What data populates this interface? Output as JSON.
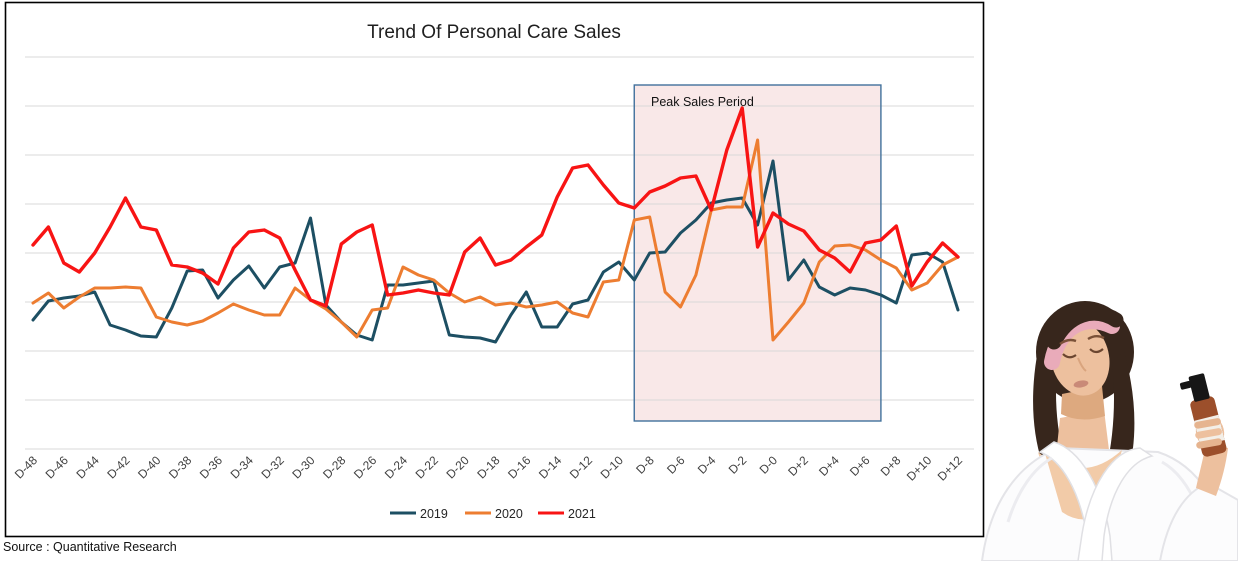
{
  "source_note": "Source : Quantitative Research",
  "photo_description": "Woman wearing a pink headband and white bathrobe, eyes closed, head tilted back, spraying an amber facial mist bottle held in her raised hand",
  "colors": {
    "series_2019": "#1d4f63",
    "series_2020": "#ed7d31",
    "series_2021": "#f81414",
    "gridline": "#d9d9d9",
    "chart_border": "#000000",
    "peak_region_fill": "#f9e8e8",
    "peak_region_border": "#41719c",
    "photo": {
      "skin": "#edc09e",
      "skin_shadow": "#dda97f",
      "hair": "#37261c",
      "headband": "#e9abba",
      "robe": "#fcfcfd",
      "robe_edge": "#e4e4e8",
      "bottle": "#9c4f2b",
      "bottle_label": "#f3efe8",
      "bottle_cap": "#161616"
    }
  },
  "chart_data": {
    "type": "line",
    "title": "Trend Of Personal Care Sales",
    "x_tick_labels": [
      "D-48",
      "D-46",
      "D-44",
      "D-42",
      "D-40",
      "D-38",
      "D-36",
      "D-34",
      "D-32",
      "D-30",
      "D-28",
      "D-26",
      "D-24",
      "D-22",
      "D-20",
      "D-18",
      "D-16",
      "D-14",
      "D-12",
      "D-10",
      "D-8",
      "D-6",
      "D-4",
      "D-2",
      "D-0",
      "D+2",
      "D+4",
      "D+6",
      "D+8",
      "D+10",
      "D+12"
    ],
    "x_days": {
      "from": -48,
      "to": 12,
      "points": 61
    },
    "ylim": [
      0,
      392
    ],
    "y_axis_labels_visible": false,
    "grid": "horizontal",
    "legend_position": "bottom",
    "annotation_region": {
      "label": "Peak Sales Period",
      "from_day": -9,
      "to_day": 7
    },
    "series": [
      {
        "name": "2019",
        "color": "#1d4f63",
        "values": [
          129,
          148,
          151,
          153,
          157,
          124,
          119,
          113,
          112,
          141,
          178,
          179,
          151,
          169,
          183,
          161,
          182,
          186,
          231,
          144,
          127,
          114,
          109,
          164,
          164,
          166,
          168,
          114,
          112,
          111,
          107,
          134,
          157,
          122,
          122,
          145,
          149,
          177,
          187,
          169,
          196,
          197,
          216,
          229,
          246,
          249,
          251,
          224,
          288,
          169,
          189,
          162,
          154,
          161,
          159,
          154,
          146,
          194,
          196,
          187,
          139
        ]
      },
      {
        "name": "2020",
        "color": "#ed7d31",
        "values": [
          146,
          156,
          141,
          152,
          161,
          161,
          162,
          161,
          132,
          127,
          124,
          128,
          136,
          145,
          139,
          134,
          134,
          161,
          149,
          140,
          127,
          112,
          139,
          141,
          182,
          174,
          169,
          156,
          147,
          152,
          144,
          146,
          142,
          144,
          147,
          136,
          132,
          167,
          169,
          229,
          232,
          157,
          142,
          174,
          239,
          242,
          242,
          309,
          109,
          127,
          146,
          187,
          203,
          204,
          199,
          189,
          181,
          159,
          166,
          184,
          192
        ]
      },
      {
        "name": "2021",
        "color": "#f81414",
        "values": [
          204,
          222,
          186,
          177,
          196,
          222,
          251,
          222,
          219,
          184,
          182,
          176,
          165,
          201,
          217,
          219,
          211,
          179,
          149,
          143,
          205,
          217,
          224,
          154,
          156,
          159,
          156,
          154,
          197,
          211,
          184,
          189,
          202,
          214,
          252,
          281,
          284,
          264,
          246,
          241,
          257,
          263,
          271,
          273,
          239,
          299,
          341,
          202,
          236,
          225,
          218,
          199,
          191,
          177,
          206,
          209,
          223,
          163,
          187,
          206,
          192
        ]
      }
    ]
  }
}
